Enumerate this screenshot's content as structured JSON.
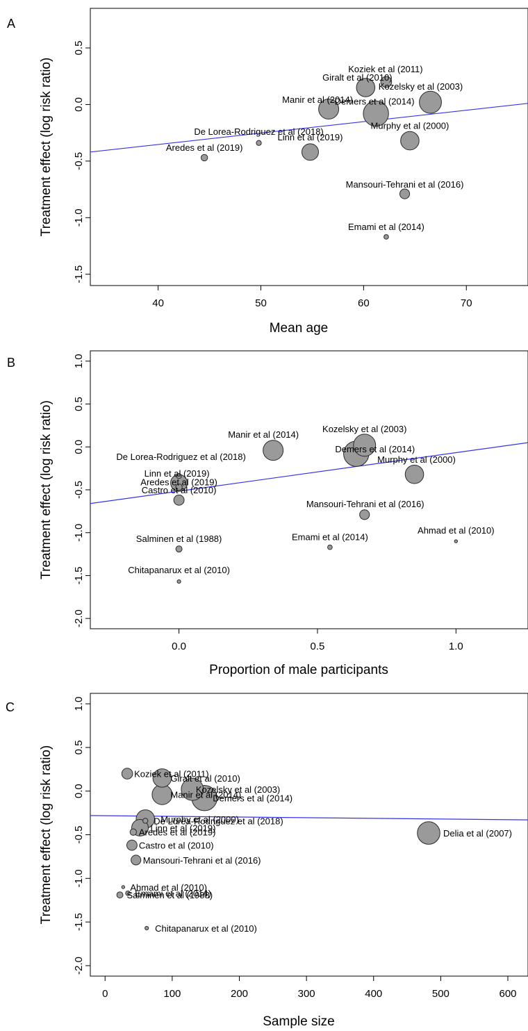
{
  "style": {
    "bubble_fill": "#9a9a9a",
    "bubble_stroke": "#2a2a2a",
    "regression_line_color": "#3333ee"
  },
  "chart_data": [
    {
      "panel": "A",
      "type": "scatter",
      "title": "",
      "xlabel": "Mean age",
      "ylabel": "Treatment effect (log risk ratio)",
      "xlim": [
        33.4,
        76
      ],
      "ylim": [
        -1.6,
        0.85
      ],
      "xticks": [
        "40",
        "50",
        "60",
        "70"
      ],
      "xtick_values": [
        40,
        50,
        60,
        70
      ],
      "yticks": [
        "-1.5",
        "-1.0",
        "-0.5",
        "0.0",
        "0.5"
      ],
      "ytick_values": [
        -1.5,
        -1.0,
        -0.5,
        0.0,
        0.5
      ],
      "regression_line": {
        "x": [
          33.4,
          76
        ],
        "y": [
          -0.42,
          0.01
        ]
      },
      "points": [
        {
          "label": "Koziek et al (2011)",
          "x": 62.2,
          "y": 0.2,
          "weight": 0.55
        },
        {
          "label": "Giralt et al (2010)",
          "x": 60.2,
          "y": 0.15,
          "weight": 1.6
        },
        {
          "label": "Kozelsky et al (2003)",
          "x": 66.5,
          "y": 0.02,
          "weight": 2.3
        },
        {
          "label": "Manir et al (2014)",
          "x": 56.6,
          "y": -0.04,
          "weight": 1.9
        },
        {
          "label": "Demers et al (2014)",
          "x": 61.2,
          "y": -0.08,
          "weight": 3.0
        },
        {
          "label": "De Lorea-Rodriguez et al (2018)",
          "x": 49.8,
          "y": -0.34,
          "weight": 0.12
        },
        {
          "label": "Murphy et al (2000)",
          "x": 64.5,
          "y": -0.32,
          "weight": 1.6
        },
        {
          "label": "Linn et al (2019)",
          "x": 54.8,
          "y": -0.42,
          "weight": 1.3
        },
        {
          "label": "Aredes et al (2019)",
          "x": 44.5,
          "y": -0.47,
          "weight": 0.2
        },
        {
          "label": "Mansouri-Tehrani et al (2016)",
          "x": 64.0,
          "y": -0.79,
          "weight": 0.45
        },
        {
          "label": "Emami et al (2014)",
          "x": 62.2,
          "y": -1.17,
          "weight": 0.1
        }
      ]
    },
    {
      "panel": "B",
      "type": "scatter",
      "title": "",
      "xlabel": "Proportion of male participants",
      "ylabel": "Treatment effect (log risk ratio)",
      "xlim": [
        -0.32,
        1.26
      ],
      "ylim": [
        -2.12,
        1.12
      ],
      "xticks": [
        "0.0",
        "0.5",
        "1.0"
      ],
      "xtick_values": [
        0.0,
        0.5,
        1.0
      ],
      "yticks": [
        "-2.0",
        "-1.5",
        "-1.0",
        "-0.5",
        "0.0",
        "0.5",
        "1.0"
      ],
      "ytick_values": [
        -2.0,
        -1.5,
        -1.0,
        -0.5,
        0.0,
        0.5,
        1.0
      ],
      "regression_line": {
        "x": [
          -0.32,
          1.26
        ],
        "y": [
          -0.66,
          0.05
        ]
      },
      "points": [
        {
          "label": "Manir et al (2014)",
          "x": 0.34,
          "y": -0.04,
          "weight": 1.9
        },
        {
          "label": "Kozelsky et al (2003)",
          "x": 0.67,
          "y": 0.02,
          "weight": 2.3
        },
        {
          "label": "Demers et al (2014)",
          "x": 0.64,
          "y": -0.08,
          "weight": 3.0
        },
        {
          "label": "Murphy et al (2000)",
          "x": 0.85,
          "y": -0.32,
          "weight": 1.6
        },
        {
          "label": "De Lorea-Rodriguez et al (2018)",
          "x": 0.0,
          "y": -0.34,
          "weight": 0.12
        },
        {
          "label": "Linn et al (2019)",
          "x": 0.0,
          "y": -0.42,
          "weight": 1.3
        },
        {
          "label": "Aredes et al (2019)",
          "x": 0.0,
          "y": -0.47,
          "weight": 0.2
        },
        {
          "label": "Castro et al (2010)",
          "x": 0.0,
          "y": -0.62,
          "weight": 0.5
        },
        {
          "label": "Mansouri-Tehrani et al (2016)",
          "x": 0.67,
          "y": -0.79,
          "weight": 0.45
        },
        {
          "label": "Ahmad et al (2010)",
          "x": 1.0,
          "y": -1.1,
          "weight": 0.03
        },
        {
          "label": "Salminen et al (1988)",
          "x": 0.0,
          "y": -1.19,
          "weight": 0.18
        },
        {
          "label": "Emami et al (2014)",
          "x": 0.545,
          "y": -1.17,
          "weight": 0.1
        },
        {
          "label": "Chitapanarux et al (2010)",
          "x": 0.0,
          "y": -1.57,
          "weight": 0.06
        }
      ]
    },
    {
      "panel": "C",
      "type": "scatter",
      "title": "",
      "xlabel": "Sample size",
      "ylabel": "Treatment effect (log risk ratio)",
      "xlim": [
        -22,
        630
      ],
      "ylim": [
        -2.12,
        1.12
      ],
      "xticks": [
        "0",
        "100",
        "200",
        "300",
        "400",
        "500",
        "600"
      ],
      "xtick_values": [
        0,
        100,
        200,
        300,
        400,
        500,
        600
      ],
      "yticks": [
        "-2.0",
        "-1.5",
        "-1.0",
        "-0.5",
        "0.0",
        "0.5",
        "1.0"
      ],
      "ytick_values": [
        -2.0,
        -1.5,
        -1.0,
        -0.5,
        0.0,
        0.5,
        1.0
      ],
      "regression_line": {
        "x": [
          -22,
          630
        ],
        "y": [
          -0.28,
          -0.33
        ]
      },
      "points": [
        {
          "label": "Koziek et al (2011)",
          "x": 33,
          "y": 0.2,
          "weight": 0.55
        },
        {
          "label": "Giralt et al (2010)",
          "x": 85,
          "y": 0.15,
          "weight": 1.6
        },
        {
          "label": "Kozelsky et al (2003)",
          "x": 130,
          "y": 0.02,
          "weight": 2.3
        },
        {
          "label": "Manir et al (2014)",
          "x": 85,
          "y": -0.04,
          "weight": 1.9
        },
        {
          "label": "Demers et al (2014)",
          "x": 148,
          "y": -0.08,
          "weight": 3.0
        },
        {
          "label": "Murphy et al (2000)",
          "x": 60,
          "y": -0.32,
          "weight": 1.6
        },
        {
          "label": "De Lorea-Rodriguez et al (2018)",
          "x": 60,
          "y": -0.34,
          "weight": 0.12
        },
        {
          "label": "Linn et al (2019)",
          "x": 52,
          "y": -0.42,
          "weight": 1.3
        },
        {
          "label": "Aredes et al (2019)",
          "x": 42,
          "y": -0.47,
          "weight": 0.2
        },
        {
          "label": "Delia et al (2007)",
          "x": 482,
          "y": -0.48,
          "weight": 2.4
        },
        {
          "label": "Castro et al (2010)",
          "x": 40,
          "y": -0.62,
          "weight": 0.5
        },
        {
          "label": "Mansouri-Tehrani et al (2016)",
          "x": 46,
          "y": -0.79,
          "weight": 0.45
        },
        {
          "label": "Ahmad et al (2010)",
          "x": 27,
          "y": -1.1,
          "weight": 0.03
        },
        {
          "label": "Emami et al (2014)",
          "x": 34,
          "y": -1.17,
          "weight": 0.1
        },
        {
          "label": "Salminen et al (1988)",
          "x": 22,
          "y": -1.19,
          "weight": 0.18
        },
        {
          "label": "Chitapanarux et al (2010)",
          "x": 62,
          "y": -1.57,
          "weight": 0.06
        }
      ]
    }
  ]
}
